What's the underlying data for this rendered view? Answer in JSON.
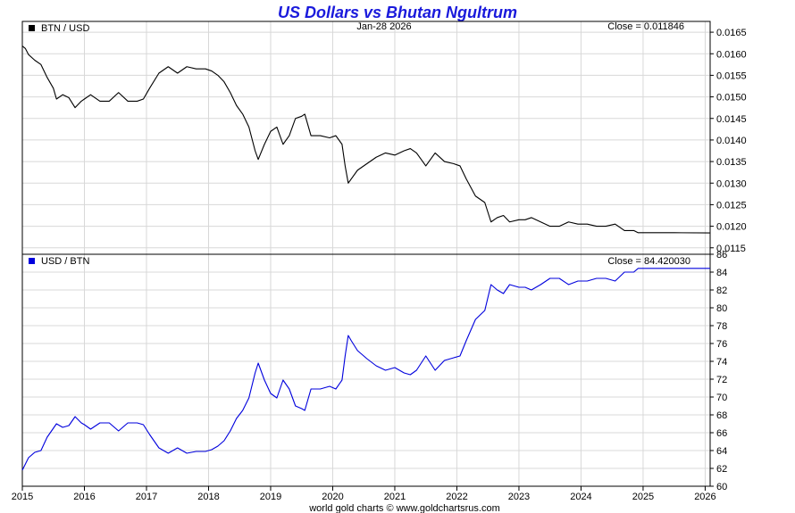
{
  "title": "US Dollars vs Bhutan Ngultrum",
  "date_label": "Jan-28  2026",
  "footer": "world gold charts © www.goldchartsrus.com",
  "colors": {
    "title": "#1a1adc",
    "upper_series": "#000000",
    "lower_series": "#0000dd",
    "grid": "#d8d8d8",
    "frame": "#000000"
  },
  "x_axis": {
    "ticks": [
      "2015",
      "2016",
      "2017",
      "2018",
      "2019",
      "2020",
      "2021",
      "2022",
      "2023",
      "2024",
      "2025",
      "2026"
    ],
    "range": [
      2015.0,
      2026.08
    ]
  },
  "chart_data": [
    {
      "type": "line",
      "legend": "BTN / USD",
      "close_label": "Close = 0.011846",
      "y_ticks": [
        "0.0165",
        "0.0160",
        "0.0155",
        "0.0150",
        "0.0145",
        "0.0140",
        "0.0135",
        "0.0130",
        "0.0125",
        "0.0120",
        "0.0115"
      ],
      "ylim": [
        0.01135,
        0.01675
      ],
      "series": [
        {
          "name": "BTN / USD",
          "x": [
            2015.0,
            2015.05,
            2015.1,
            2015.2,
            2015.3,
            2015.4,
            2015.5,
            2015.55,
            2015.65,
            2015.75,
            2015.85,
            2015.95,
            2016.0,
            2016.1,
            2016.25,
            2016.4,
            2016.55,
            2016.7,
            2016.85,
            2016.95,
            2017.05,
            2017.2,
            2017.35,
            2017.5,
            2017.65,
            2017.8,
            2017.95,
            2018.05,
            2018.15,
            2018.25,
            2018.35,
            2018.45,
            2018.55,
            2018.65,
            2018.75,
            2018.8,
            2018.9,
            2019.0,
            2019.1,
            2019.2,
            2019.3,
            2019.4,
            2019.5,
            2019.55,
            2019.65,
            2019.8,
            2019.95,
            2020.05,
            2020.15,
            2020.2,
            2020.25,
            2020.3,
            2020.4,
            2020.55,
            2020.7,
            2020.85,
            2021.0,
            2021.15,
            2021.25,
            2021.35,
            2021.5,
            2021.65,
            2021.8,
            2021.95,
            2022.05,
            2022.15,
            2022.3,
            2022.45,
            2022.55,
            2022.65,
            2022.75,
            2022.85,
            2023.0,
            2023.1,
            2023.2,
            2023.35,
            2023.5,
            2023.65,
            2023.8,
            2023.95,
            2024.1,
            2024.25,
            2024.4,
            2024.55,
            2024.7,
            2024.85,
            2024.92,
            2025.1,
            2025.5,
            2026.08
          ],
          "y": [
            0.01618,
            0.01612,
            0.01598,
            0.01585,
            0.01575,
            0.01545,
            0.0152,
            0.01495,
            0.01505,
            0.01498,
            0.01475,
            0.0149,
            0.01495,
            0.01505,
            0.0149,
            0.0149,
            0.0151,
            0.0149,
            0.0149,
            0.01495,
            0.0152,
            0.01555,
            0.0157,
            0.01555,
            0.0157,
            0.01565,
            0.01565,
            0.0156,
            0.0155,
            0.01535,
            0.0151,
            0.0148,
            0.0146,
            0.0143,
            0.01375,
            0.01355,
            0.0139,
            0.0142,
            0.0143,
            0.0139,
            0.0141,
            0.0145,
            0.01455,
            0.0146,
            0.0141,
            0.0141,
            0.01405,
            0.0141,
            0.0139,
            0.0134,
            0.013,
            0.0131,
            0.0133,
            0.01345,
            0.0136,
            0.0137,
            0.01365,
            0.01375,
            0.0138,
            0.0137,
            0.0134,
            0.0137,
            0.0135,
            0.01345,
            0.0134,
            0.0131,
            0.0127,
            0.01255,
            0.0121,
            0.0122,
            0.01225,
            0.0121,
            0.01215,
            0.01215,
            0.0122,
            0.0121,
            0.012,
            0.012,
            0.0121,
            0.01205,
            0.01205,
            0.012,
            0.012,
            0.01205,
            0.0119,
            0.0119,
            0.01185,
            0.01185,
            0.01185,
            0.011846
          ]
        }
      ]
    },
    {
      "type": "line",
      "legend": "USD / BTN",
      "close_label": "Close = 84.420030",
      "y_ticks": [
        "86",
        "84",
        "82",
        "80",
        "78",
        "76",
        "74",
        "72",
        "70",
        "68",
        "66",
        "64",
        "62",
        "60"
      ],
      "ylim": [
        60,
        86
      ],
      "series": [
        {
          "name": "USD / BTN",
          "x": [
            2015.0,
            2015.05,
            2015.1,
            2015.2,
            2015.3,
            2015.4,
            2015.5,
            2015.55,
            2015.65,
            2015.75,
            2015.85,
            2015.95,
            2016.0,
            2016.1,
            2016.25,
            2016.4,
            2016.55,
            2016.7,
            2016.85,
            2016.95,
            2017.05,
            2017.2,
            2017.35,
            2017.5,
            2017.65,
            2017.8,
            2017.95,
            2018.05,
            2018.15,
            2018.25,
            2018.35,
            2018.45,
            2018.55,
            2018.65,
            2018.75,
            2018.8,
            2018.9,
            2019.0,
            2019.1,
            2019.2,
            2019.3,
            2019.4,
            2019.5,
            2019.55,
            2019.65,
            2019.8,
            2019.95,
            2020.05,
            2020.15,
            2020.2,
            2020.25,
            2020.3,
            2020.4,
            2020.55,
            2020.7,
            2020.85,
            2021.0,
            2021.15,
            2021.25,
            2021.35,
            2021.5,
            2021.65,
            2021.8,
            2021.95,
            2022.05,
            2022.15,
            2022.3,
            2022.45,
            2022.55,
            2022.65,
            2022.75,
            2022.85,
            2023.0,
            2023.1,
            2023.2,
            2023.35,
            2023.5,
            2023.65,
            2023.8,
            2023.95,
            2024.1,
            2024.25,
            2024.4,
            2024.55,
            2024.7,
            2024.85,
            2024.92,
            2025.1,
            2025.5,
            2026.08
          ],
          "y": [
            61.8,
            62.5,
            63.2,
            63.8,
            64.0,
            65.5,
            66.5,
            67.0,
            66.6,
            66.8,
            67.8,
            67.1,
            66.9,
            66.4,
            67.1,
            67.1,
            66.2,
            67.1,
            67.1,
            66.9,
            65.8,
            64.3,
            63.7,
            64.3,
            63.7,
            63.9,
            63.9,
            64.1,
            64.5,
            65.1,
            66.2,
            67.6,
            68.5,
            69.9,
            72.7,
            73.8,
            71.9,
            70.4,
            69.9,
            71.9,
            70.9,
            69.0,
            68.7,
            68.5,
            70.9,
            70.9,
            71.2,
            70.9,
            71.9,
            74.6,
            76.9,
            76.3,
            75.2,
            74.3,
            73.5,
            73.0,
            73.3,
            72.7,
            72.5,
            73.0,
            74.6,
            73.0,
            74.1,
            74.4,
            74.6,
            76.3,
            78.7,
            79.7,
            82.6,
            82.0,
            81.6,
            82.6,
            82.3,
            82.3,
            82.0,
            82.6,
            83.3,
            83.3,
            82.6,
            83.0,
            83.0,
            83.3,
            83.3,
            83.0,
            84.0,
            84.0,
            84.42,
            84.42,
            84.42,
            84.42
          ]
        }
      ]
    }
  ]
}
